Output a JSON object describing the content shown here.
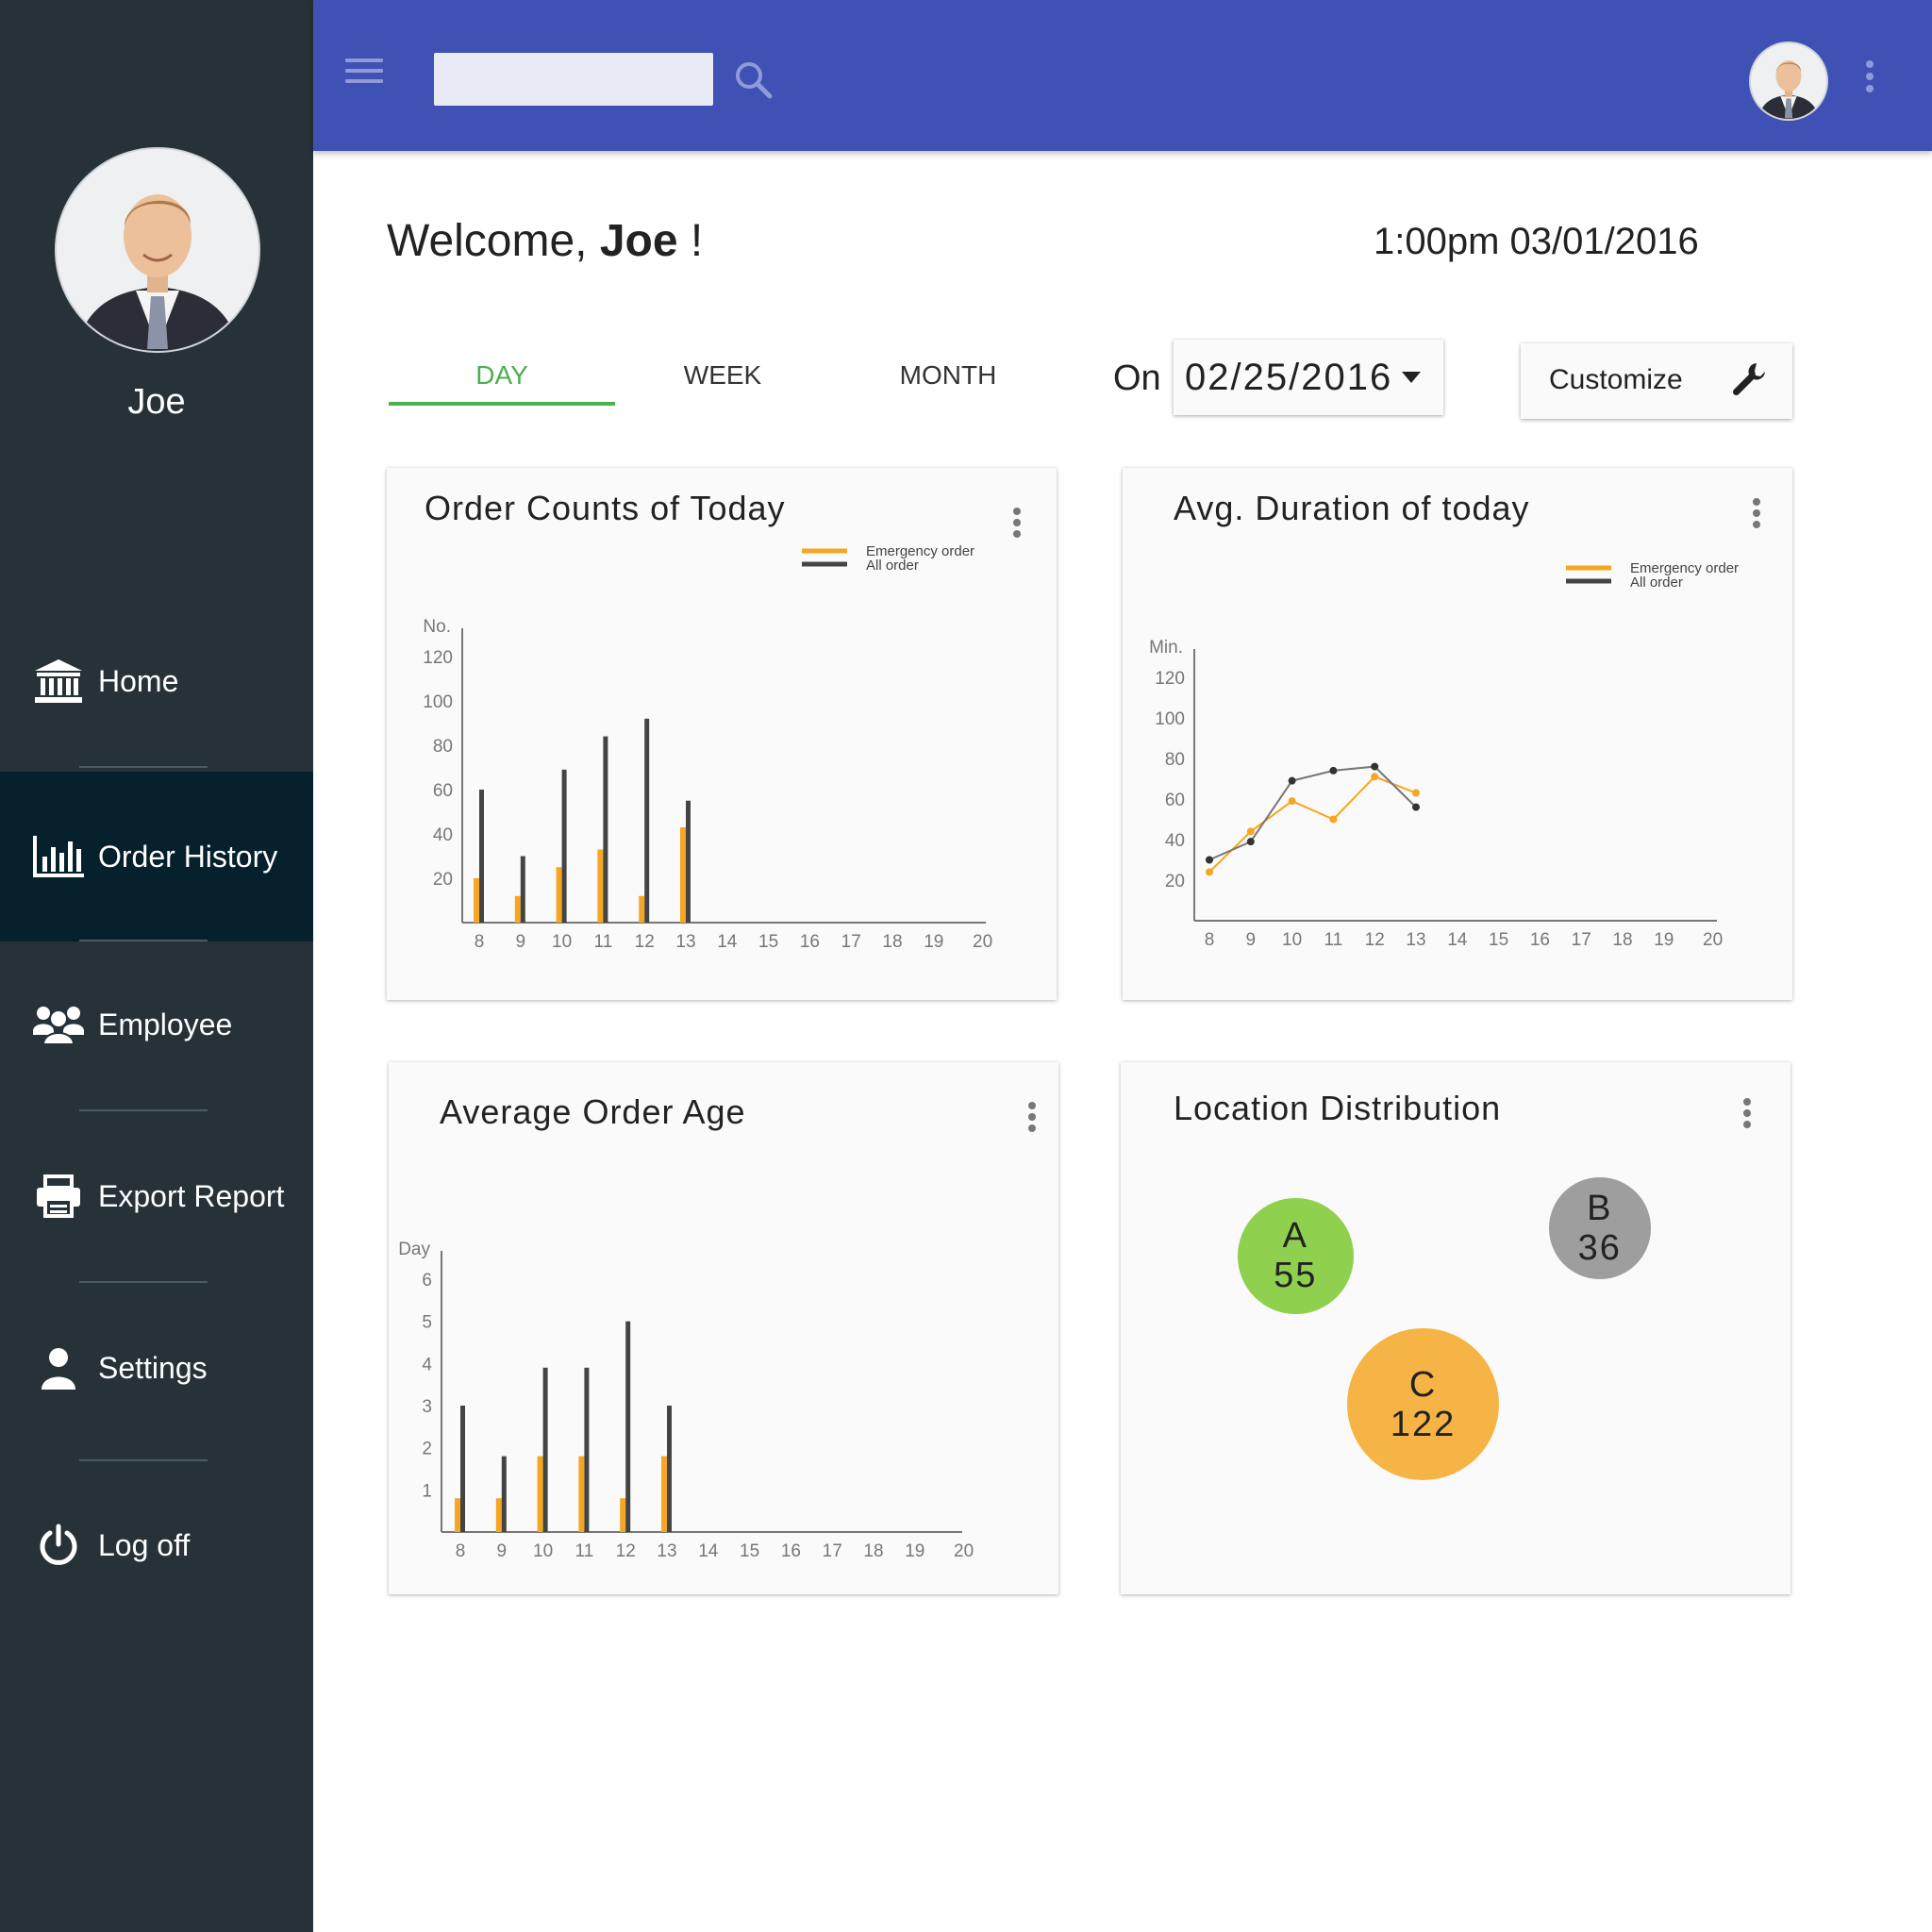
{
  "sidebar": {
    "user_name": "Joe",
    "items": [
      {
        "label": "Home",
        "icon": "bank-icon"
      },
      {
        "label": "Order History",
        "icon": "bar-chart-icon"
      },
      {
        "label": "Employee",
        "icon": "users-icon"
      },
      {
        "label": "Export Report",
        "icon": "printer-icon"
      },
      {
        "label": "Settings",
        "icon": "user-icon"
      },
      {
        "label": "Log off",
        "icon": "power-icon"
      }
    ],
    "active": "Order History"
  },
  "topbar": {
    "search_value": "",
    "color": "#3f51b5"
  },
  "header": {
    "welcome_prefix": "Welcome, ",
    "welcome_name": "Joe",
    "welcome_suffix": " !",
    "datetime": "1:00pm 03/01/2016"
  },
  "tabs": [
    {
      "label": "DAY",
      "active": true
    },
    {
      "label": "WEEK",
      "active": false
    },
    {
      "label": "MONTH",
      "active": false
    }
  ],
  "date_filter": {
    "prefix": "On",
    "value": "02/25/2016"
  },
  "customize_label": "Customize",
  "colors": {
    "emergency": "#f5a623",
    "all": "#444444",
    "accent_green": "#4caf50"
  },
  "cards": {
    "order_counts": {
      "title": "Order Counts of Today"
    },
    "avg_duration": {
      "title": "Avg. Duration of today"
    },
    "avg_age": {
      "title": "Average Order Age"
    },
    "location": {
      "title": "Location Distribution"
    }
  },
  "chart_data": [
    {
      "id": "order_counts",
      "type": "bar",
      "title": "Order Counts of Today",
      "ylabel": "No.",
      "ylim": [
        0,
        120
      ],
      "yticks": [
        20,
        40,
        60,
        80,
        100,
        120
      ],
      "categories": [
        "8",
        "9",
        "10",
        "11",
        "12",
        "13",
        "14",
        "15",
        "16",
        "17",
        "18",
        "19",
        "20"
      ],
      "legend": [
        "Emergency order",
        "All order"
      ],
      "series": [
        {
          "name": "Emergency order",
          "values": [
            20,
            12,
            25,
            33,
            12,
            43,
            null,
            null,
            null,
            null,
            null,
            null,
            null
          ]
        },
        {
          "name": "All order",
          "values": [
            60,
            30,
            69,
            84,
            92,
            55,
            null,
            null,
            null,
            null,
            null,
            null,
            null
          ]
        }
      ]
    },
    {
      "id": "avg_duration",
      "type": "line",
      "title": "Avg. Duration of today",
      "ylabel": "Min.",
      "ylim": [
        0,
        120
      ],
      "yticks": [
        20,
        40,
        60,
        80,
        100,
        120
      ],
      "categories": [
        "8",
        "9",
        "10",
        "11",
        "12",
        "13",
        "14",
        "15",
        "16",
        "17",
        "18",
        "19",
        "20"
      ],
      "legend": [
        "Emergency order",
        "All order"
      ],
      "series": [
        {
          "name": "Emergency order",
          "values": [
            24,
            44,
            59,
            50,
            71,
            63,
            null,
            null,
            null,
            null,
            null,
            null,
            null
          ]
        },
        {
          "name": "All order",
          "values": [
            30,
            39,
            69,
            74,
            76,
            56,
            null,
            null,
            null,
            null,
            null,
            null,
            null
          ]
        }
      ]
    },
    {
      "id": "avg_age",
      "type": "bar",
      "title": "Average Order Age",
      "ylabel": "Day",
      "ylim": [
        0,
        6
      ],
      "yticks": [
        1,
        2,
        3,
        4,
        5,
        6
      ],
      "categories": [
        "8",
        "9",
        "10",
        "11",
        "12",
        "13",
        "14",
        "15",
        "16",
        "17",
        "18",
        "19",
        "20"
      ],
      "series": [
        {
          "name": "Emergency order",
          "values": [
            0.8,
            0.8,
            1.8,
            1.8,
            0.8,
            1.8,
            null,
            null,
            null,
            null,
            null,
            null,
            null
          ]
        },
        {
          "name": "All order",
          "values": [
            3,
            1.8,
            3.9,
            3.9,
            5,
            3,
            null,
            null,
            null,
            null,
            null,
            null,
            null
          ]
        }
      ]
    },
    {
      "id": "location",
      "type": "scatter",
      "title": "Location Distribution",
      "points": [
        {
          "label": "A",
          "value": 55,
          "color": "#8fd14f"
        },
        {
          "label": "B",
          "value": 36,
          "color": "#9e9e9e"
        },
        {
          "label": "C",
          "value": 122,
          "color": "#f5b445"
        }
      ]
    }
  ]
}
